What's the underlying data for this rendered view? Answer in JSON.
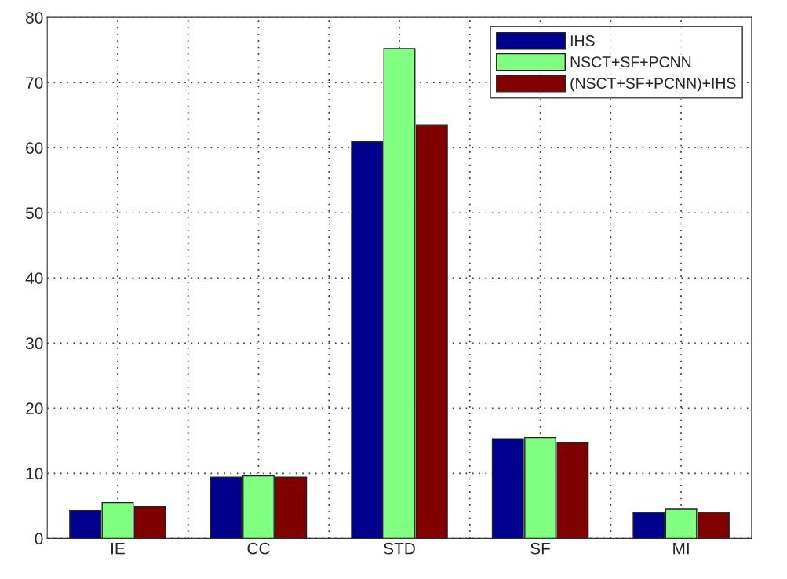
{
  "chart_data": {
    "type": "bar",
    "categories": [
      "IE",
      "CC",
      "STD",
      "SF",
      "MI"
    ],
    "series": [
      {
        "name": "IHS",
        "color": "#00008f",
        "values": [
          4.3,
          9.4,
          60.9,
          15.3,
          4.0
        ]
      },
      {
        "name": "NSCT+SF+PCNN",
        "color": "#80ff80",
        "values": [
          5.5,
          9.6,
          75.2,
          15.5,
          4.5
        ]
      },
      {
        "name": "(NSCT+SF+PCNN)+IHS",
        "color": "#800000",
        "values": [
          4.9,
          9.4,
          63.5,
          14.7,
          4.0
        ]
      }
    ],
    "ylim": [
      0,
      80
    ],
    "yticks": [
      0,
      10,
      20,
      30,
      40,
      50,
      60,
      70,
      80
    ],
    "grid": true,
    "legend": "top right"
  }
}
